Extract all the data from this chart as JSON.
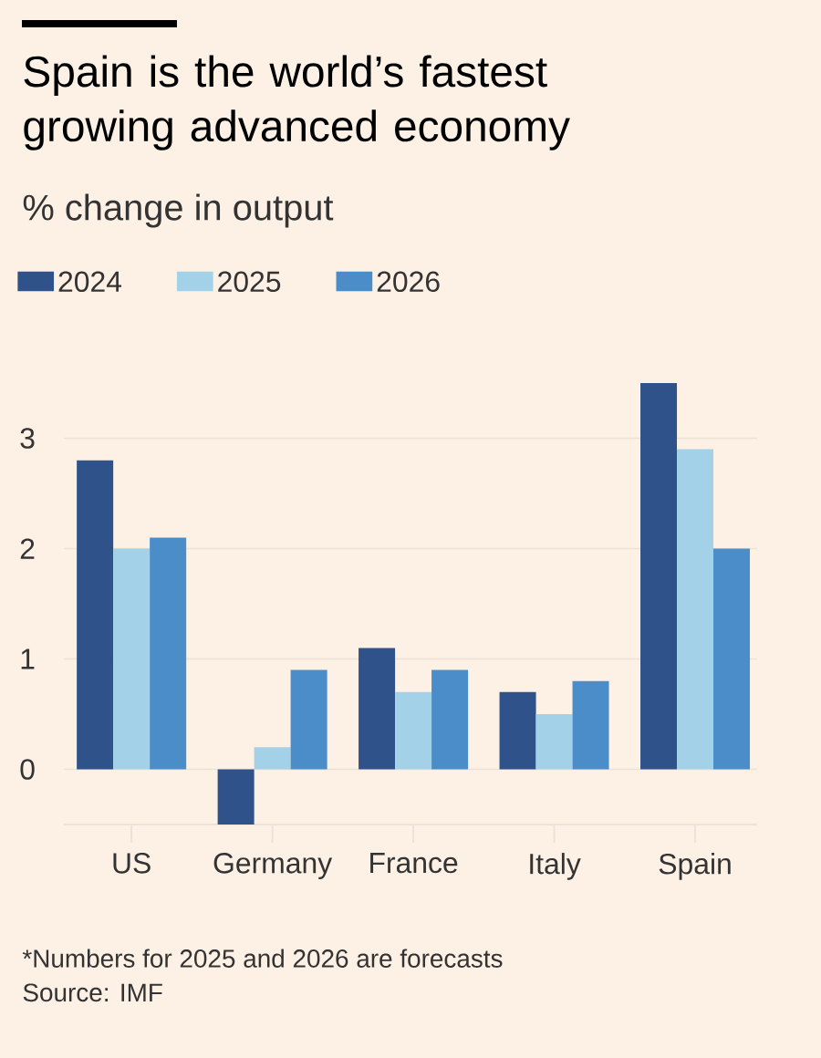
{
  "chart_data": {
    "type": "bar",
    "title": "Spain is the world’s fastest growing advanced economy",
    "subtitle": "% change in output",
    "categories": [
      "US",
      "Germany",
      "France",
      "Italy",
      "Spain"
    ],
    "series": [
      {
        "name": "2024",
        "color": "#2e5289",
        "values": [
          2.8,
          -0.5,
          1.1,
          0.7,
          3.5
        ]
      },
      {
        "name": "2025",
        "color": "#a2d1e8",
        "values": [
          2.0,
          0.2,
          0.7,
          0.5,
          2.9
        ]
      },
      {
        "name": "2026",
        "color": "#4a8dc8",
        "values": [
          2.1,
          0.9,
          0.9,
          0.8,
          2.0
        ]
      }
    ],
    "ylim": [
      -0.5,
      3.5
    ],
    "yticks": [
      0,
      1,
      2,
      3
    ],
    "grid": "y",
    "legend": "top",
    "annotations": [
      "*Numbers for 2025 and 2026 are forecasts",
      "Source: IMF"
    ]
  }
}
